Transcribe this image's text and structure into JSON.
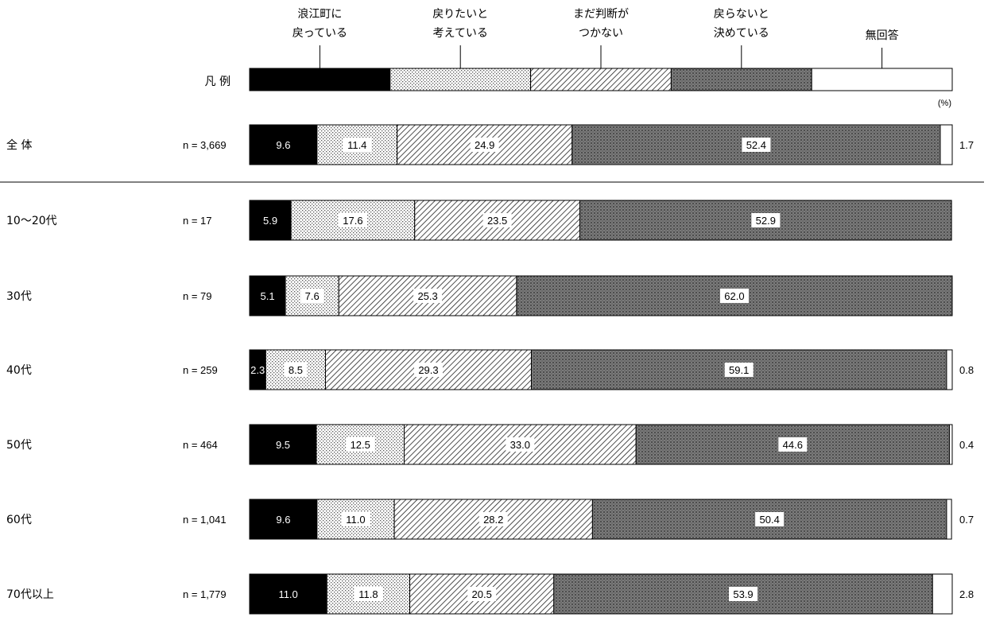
{
  "chart_data": {
    "type": "bar",
    "orientation": "horizontal",
    "stacked": true,
    "percent_unit": "(%)",
    "legend_label": "凡 例",
    "legend_placement": "top",
    "xlim": [
      0,
      100
    ],
    "series": [
      {
        "name": "浪江町に\n戻っている",
        "pattern": "solid-black",
        "values": [
          9.6,
          5.9,
          5.1,
          2.3,
          9.5,
          9.6,
          11.0
        ]
      },
      {
        "name": "戻りたいと\n考えている",
        "pattern": "dots",
        "values": [
          11.4,
          17.6,
          7.6,
          8.5,
          12.5,
          11.0,
          11.8
        ]
      },
      {
        "name": "まだ判断が\nつかない",
        "pattern": "diagonal-lines",
        "values": [
          24.9,
          23.5,
          25.3,
          29.3,
          33.0,
          28.2,
          20.5
        ]
      },
      {
        "name": "戻らないと\n決めている",
        "pattern": "crosshatch-dark",
        "values": [
          52.4,
          52.9,
          62.0,
          59.1,
          44.6,
          50.4,
          53.9
        ]
      },
      {
        "name": "無回答",
        "pattern": "white",
        "values": [
          1.7,
          null,
          null,
          0.8,
          0.4,
          0.7,
          2.8
        ]
      }
    ],
    "rows": [
      {
        "category": "全 体",
        "n": "n = 3,669"
      },
      {
        "category": "10〜20代",
        "n": "n = 17"
      },
      {
        "category": "30代",
        "n": "n = 79"
      },
      {
        "category": "40代",
        "n": "n = 259"
      },
      {
        "category": "50代",
        "n": "n = 464"
      },
      {
        "category": "60代",
        "n": "n = 1,041"
      },
      {
        "category": "70代以上",
        "n": "n = 1,779"
      }
    ],
    "value_labels": [
      [
        "9.6",
        "11.4",
        "24.9",
        "52.4",
        "1.7"
      ],
      [
        "5.9",
        "17.6",
        "23.5",
        "52.9",
        ""
      ],
      [
        "5.1",
        "7.6",
        "25.3",
        "62.0",
        ""
      ],
      [
        "2.3",
        "8.5",
        "29.3",
        "59.1",
        "0.8"
      ],
      [
        "9.5",
        "12.5",
        "33.0",
        "44.6",
        "0.4"
      ],
      [
        "9.6",
        "11.0",
        "28.2",
        "50.4",
        "0.7"
      ],
      [
        "11.0",
        "11.8",
        "20.5",
        "53.9",
        "2.8"
      ]
    ]
  }
}
